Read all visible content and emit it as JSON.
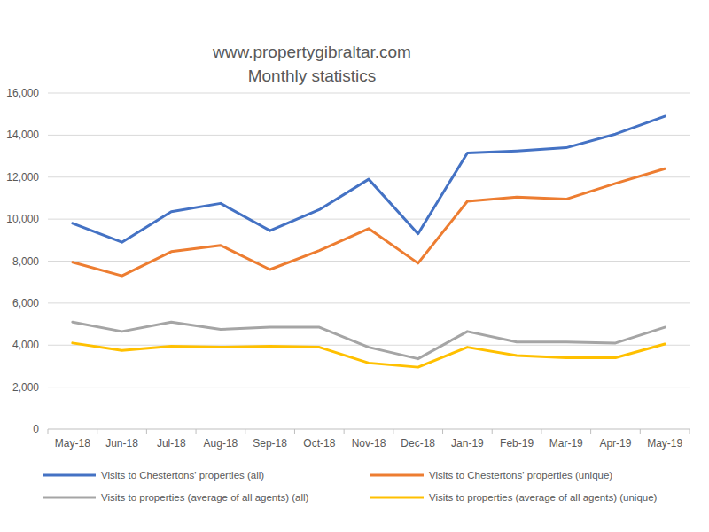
{
  "chart_data": {
    "type": "line",
    "title": "www.propertygibraltar.com",
    "subtitle": "Monthly statistics",
    "categories": [
      "May-18",
      "Jun-18",
      "Jul-18",
      "Aug-18",
      "Sep-18",
      "Oct-18",
      "Nov-18",
      "Dec-18",
      "Jan-19",
      "Feb-19",
      "Mar-19",
      "Apr-19",
      "May-19"
    ],
    "series": [
      {
        "name": "Visits to Chestertons' properties (all)",
        "color": "#4472c4",
        "values": [
          9800,
          8900,
          10350,
          10750,
          9450,
          10450,
          11900,
          9300,
          13150,
          13250,
          13400,
          14050,
          14900
        ]
      },
      {
        "name": "Visits to Chestertons' properties (unique)",
        "color": "#ed7d31",
        "values": [
          7950,
          7300,
          8450,
          8750,
          7600,
          8500,
          9550,
          7900,
          10850,
          11050,
          10950,
          11700,
          12400
        ]
      },
      {
        "name": "Visits to properties (average of all agents) (all)",
        "color": "#a5a5a5",
        "values": [
          5100,
          4650,
          5100,
          4750,
          4850,
          4850,
          3900,
          3350,
          4650,
          4150,
          4150,
          4100,
          4850
        ]
      },
      {
        "name": "Visits to properties (average of all agents) (unique)",
        "color": "#ffc000",
        "values": [
          4100,
          3750,
          3950,
          3900,
          3950,
          3900,
          3150,
          2950,
          3900,
          3500,
          3400,
          3400,
          4050
        ]
      }
    ],
    "ylim": [
      0,
      16000
    ],
    "yticks": [
      0,
      {
        "value": 2000,
        "label": "2,000"
      },
      {
        "value": 4000,
        "label": "4,000"
      },
      {
        "value": 6000,
        "label": "6,000"
      },
      {
        "value": 8000,
        "label": "8,000"
      },
      {
        "value": 10000,
        "label": "10,000"
      },
      {
        "value": 12000,
        "label": "12,000"
      },
      {
        "value": 14000,
        "label": "14,000"
      },
      {
        "value": 16000,
        "label": "16,000"
      }
    ],
    "grid": true,
    "legend": "bottom"
  }
}
